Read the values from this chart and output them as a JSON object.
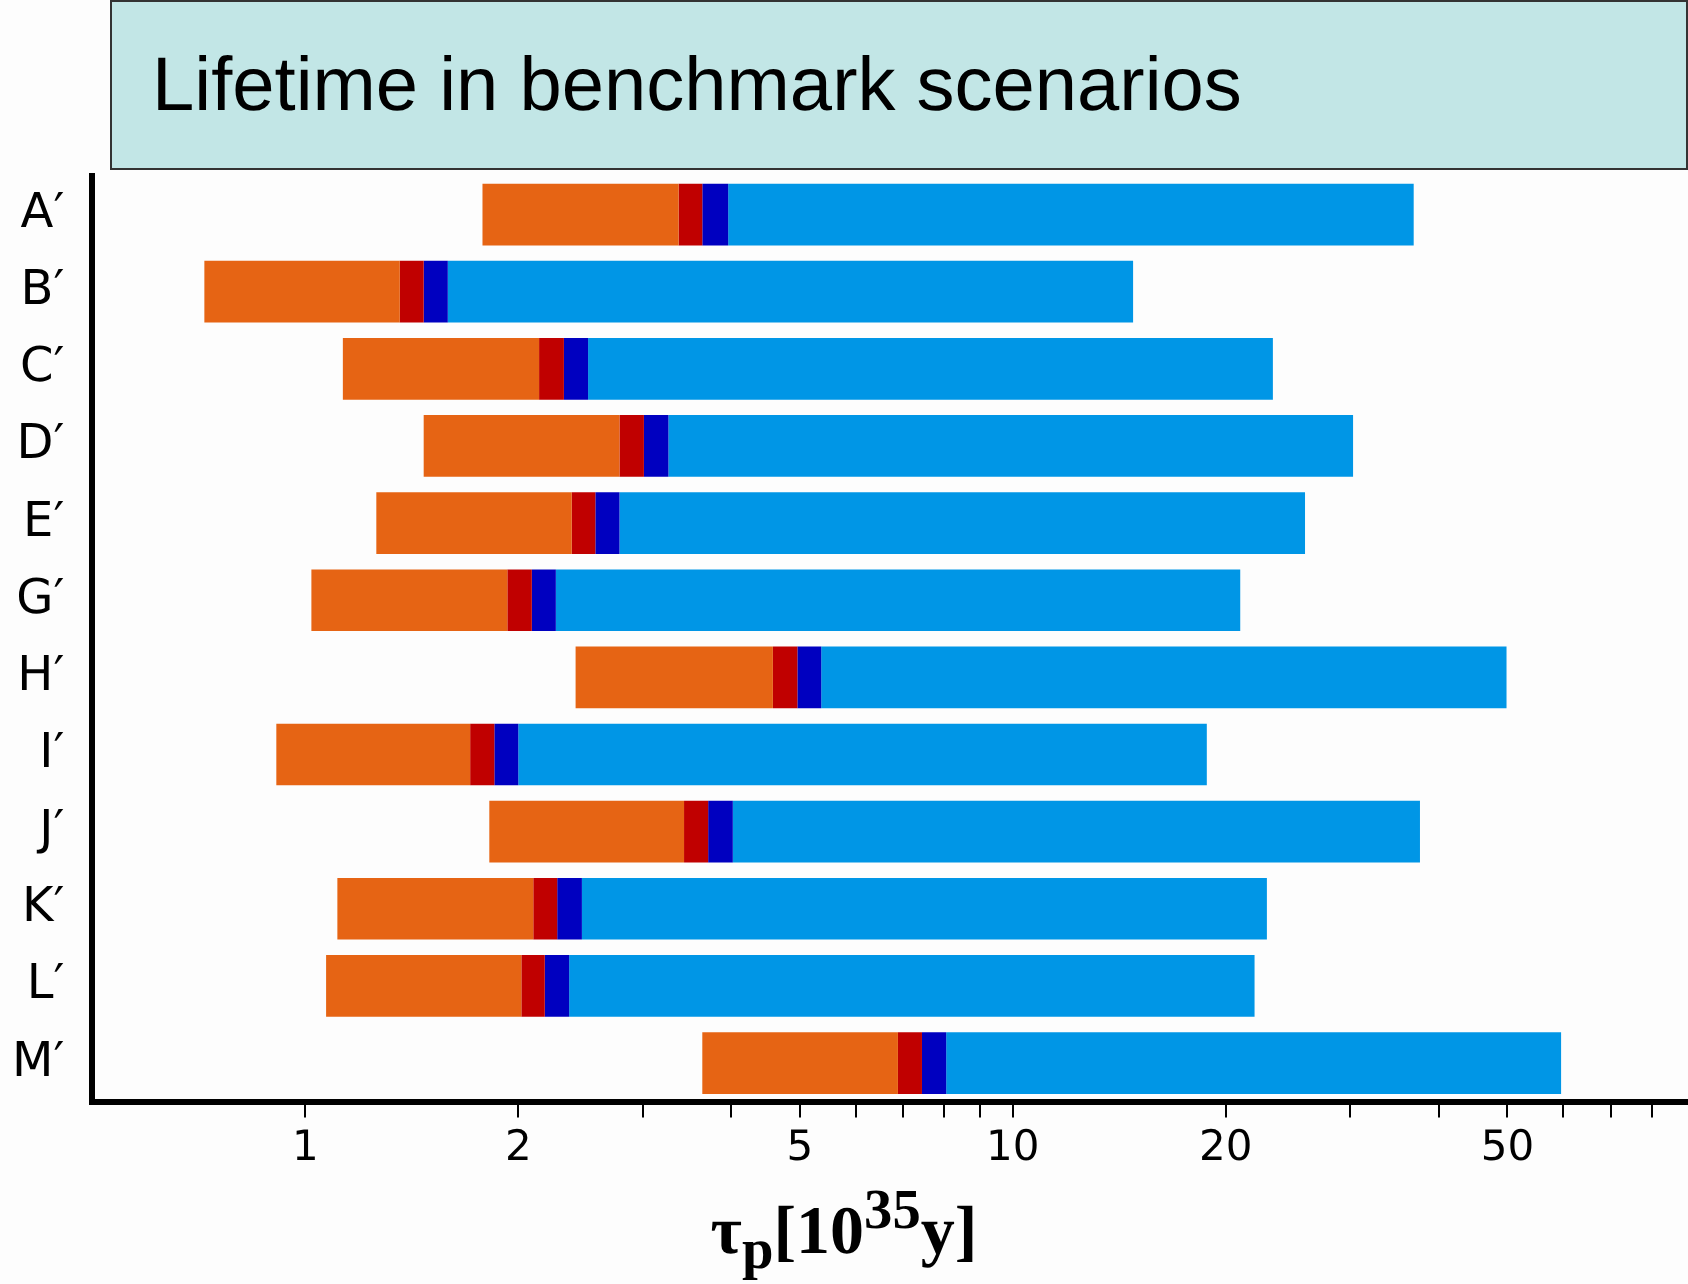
{
  "chart_data": {
    "type": "bar",
    "title": "Lifetime in benchmark scenarios",
    "xlabel": "τ$_{p}$[10$^{35}$y]",
    "orientation": "horizontal",
    "log": "x",
    "grid": false,
    "legend": false,
    "categories": [
      "A′",
      "B′",
      "C′",
      "D′",
      "E′",
      "G′",
      "H′",
      "I′",
      "J′",
      "K′",
      "L′",
      "M′"
    ],
    "series": [
      {
        "color": "#e66414",
        "base": [
          1.78,
          0.72,
          1.13,
          1.47,
          1.26,
          1.02,
          2.41,
          0.91,
          1.82,
          1.11,
          1.07,
          3.64
        ],
        "values": [
          1.59,
          0.64,
          1.01,
          1.31,
          1.12,
          0.91,
          2.17,
          0.8,
          1.61,
          0.99,
          0.95,
          3.24
        ]
      },
      {
        "color": "#c00000",
        "base": [
          3.37,
          1.36,
          2.14,
          2.78,
          2.38,
          1.93,
          4.58,
          1.71,
          3.43,
          2.1,
          2.02,
          6.88
        ],
        "values": [
          0.27,
          0.11,
          0.18,
          0.23,
          0.19,
          0.16,
          0.38,
          0.14,
          0.28,
          0.17,
          0.16,
          0.56
        ]
      },
      {
        "color": "#0000c0",
        "base": [
          3.64,
          1.47,
          2.32,
          3.01,
          2.57,
          2.09,
          4.96,
          1.85,
          3.71,
          2.27,
          2.18,
          7.44
        ],
        "values": [
          0.32,
          0.12,
          0.19,
          0.25,
          0.21,
          0.17,
          0.4,
          0.15,
          0.31,
          0.19,
          0.18,
          0.61
        ]
      },
      {
        "color": "#0096e6",
        "base": [
          3.96,
          1.59,
          2.51,
          3.26,
          2.78,
          2.26,
          5.36,
          2.0,
          4.02,
          2.46,
          2.36,
          8.05
        ],
        "values": [
          32.9,
          13.2,
          20.8,
          27.0,
          23.1,
          18.7,
          44.5,
          16.8,
          33.6,
          20.4,
          19.6,
          51.5
        ]
      }
    ],
    "xlim": [
      0.5,
      90
    ],
    "xticks": [
      1,
      2,
      {
        "value": 3,
        "label": null
      },
      {
        "value": 4,
        "label": null
      },
      5,
      {
        "value": 6,
        "label": null
      },
      {
        "value": 7,
        "label": null
      },
      {
        "value": 8,
        "label": null
      },
      {
        "value": 9,
        "label": null
      },
      10,
      20,
      {
        "value": 30,
        "label": null
      },
      {
        "value": 40,
        "label": null
      },
      50,
      {
        "value": 60,
        "label": null
      },
      {
        "value": 70,
        "label": null
      },
      {
        "value": 80,
        "label": null
      }
    ]
  }
}
